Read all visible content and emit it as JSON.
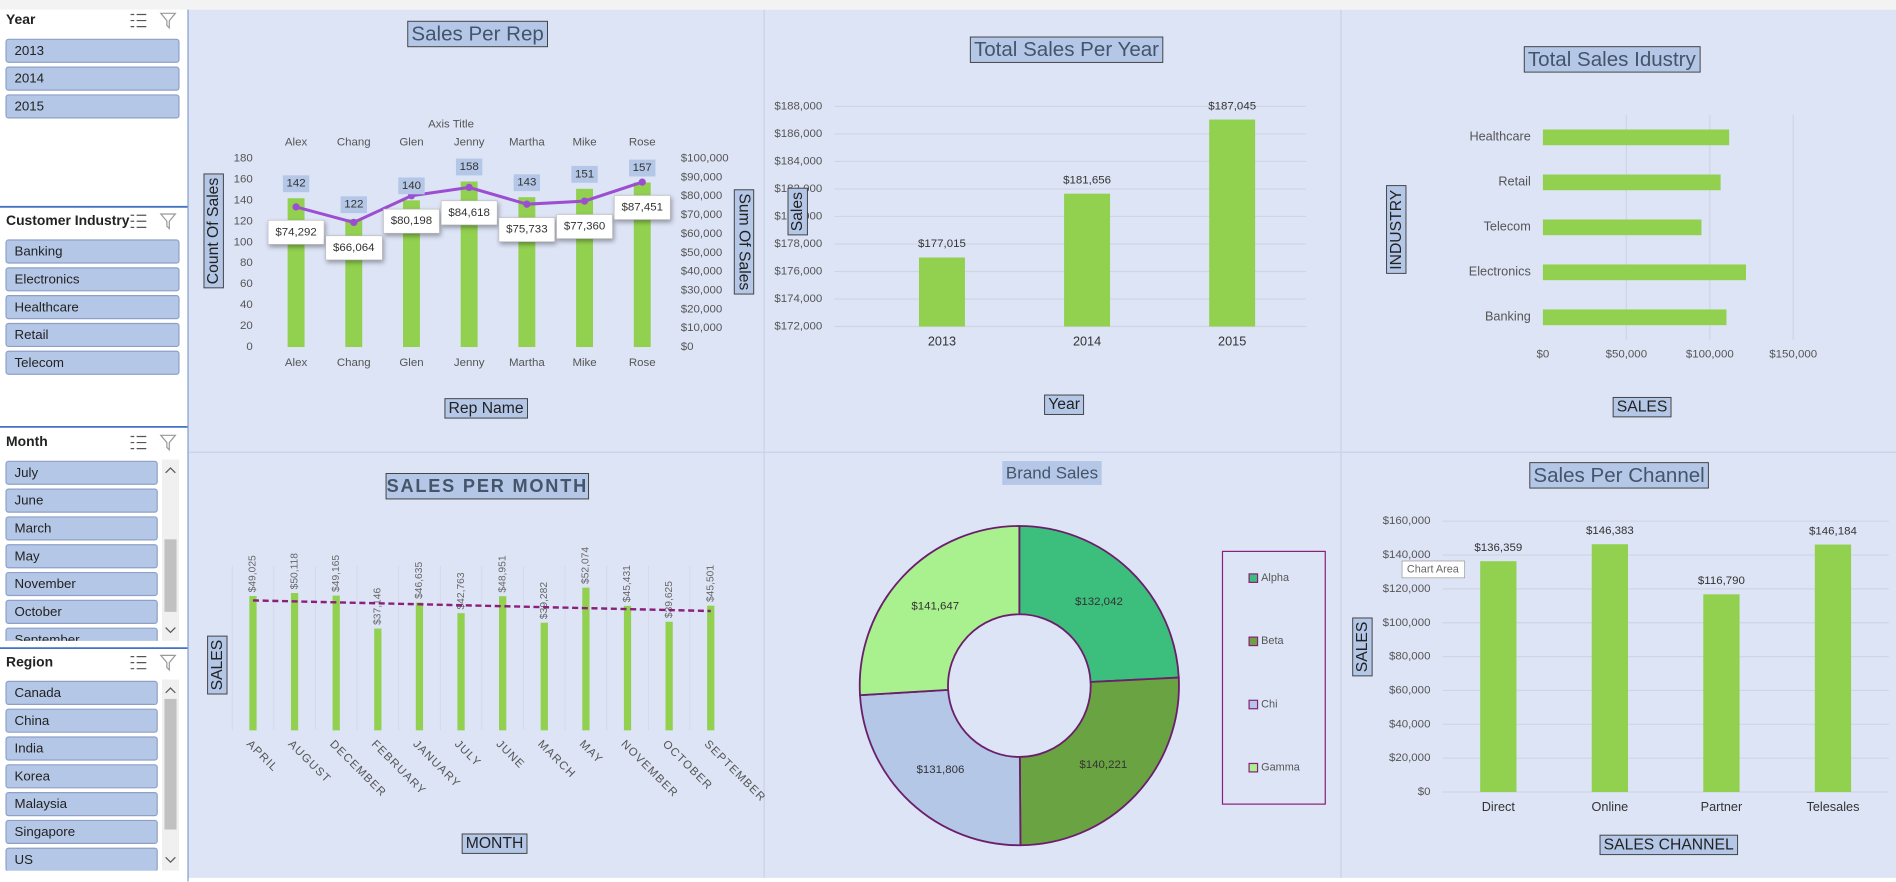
{
  "slicers": [
    {
      "title": "Year",
      "items": [
        "2013",
        "2014",
        "2015"
      ]
    },
    {
      "title": "Customer Industry",
      "items": [
        "Banking",
        "Electronics",
        "Healthcare",
        "Retail",
        "Telecom"
      ]
    },
    {
      "title": "Month",
      "items": [
        "July",
        "June",
        "March",
        "May",
        "November",
        "October",
        "September"
      ]
    },
    {
      "title": "Region",
      "items": [
        "Canada",
        "China",
        "India",
        "Korea",
        "Malaysia",
        "Singapore",
        "US"
      ]
    }
  ],
  "chart_data": [
    {
      "type": "combo",
      "title": "Sales Per Rep",
      "secondary_x_label": "Axis Title",
      "x_label": "Rep Name",
      "y_label": "Count Of Sales",
      "y2_label": "Sum Of Sales",
      "categories": [
        "Alex",
        "Chang",
        "Glen",
        "Jenny",
        "Martha",
        "Mike",
        "Rose"
      ],
      "series": [
        {
          "type": "bar",
          "color": "#92d050",
          "values": [
            142,
            122,
            140,
            158,
            143,
            151,
            157
          ]
        },
        {
          "type": "line",
          "axis": "y2",
          "color": "#9b4fd0",
          "values": [
            74292,
            66064,
            80198,
            84618,
            75733,
            77360,
            87451
          ],
          "value_labels": [
            "$74,292",
            "$66,064",
            "$80,198",
            "$84,618",
            "$75,733",
            "$77,360",
            "$87,451"
          ]
        }
      ],
      "ylim": [
        0,
        180
      ],
      "yticks": [
        0,
        20,
        40,
        60,
        80,
        100,
        120,
        140,
        160,
        180
      ],
      "y2lim": [
        0,
        100000
      ],
      "y2ticks": [
        {
          "value": 0,
          "label": "$0"
        },
        {
          "value": 10000,
          "label": "$10,000"
        },
        {
          "value": 20000,
          "label": "$20,000"
        },
        {
          "value": 30000,
          "label": "$30,000"
        },
        {
          "value": 40000,
          "label": "$40,000"
        },
        {
          "value": 50000,
          "label": "$50,000"
        },
        {
          "value": 60000,
          "label": "$60,000"
        },
        {
          "value": 70000,
          "label": "$70,000"
        },
        {
          "value": 80000,
          "label": "$80,000"
        },
        {
          "value": 90000,
          "label": "$90,000"
        },
        {
          "value": 100000,
          "label": "$100,000"
        }
      ],
      "grid": false
    },
    {
      "type": "bar",
      "title": "Total Sales Per Year",
      "x_label": "Year",
      "y_label": "Sales",
      "categories": [
        "2013",
        "2014",
        "2015"
      ],
      "values": [
        177015,
        181656,
        187045
      ],
      "value_labels": [
        "$177,015",
        "$181,656",
        "$187,045"
      ],
      "color": "#92d050",
      "ylim": [
        172000,
        188000
      ],
      "yticks": [
        {
          "value": 172000,
          "label": "$172,000"
        },
        {
          "value": 174000,
          "label": "$174,000"
        },
        {
          "value": 176000,
          "label": "$176,000"
        },
        {
          "value": 178000,
          "label": "$178,000"
        },
        {
          "value": 180000,
          "label": "$180,000"
        },
        {
          "value": 182000,
          "label": "$182,000"
        },
        {
          "value": 184000,
          "label": "$184,000"
        },
        {
          "value": 186000,
          "label": "$186,000"
        },
        {
          "value": 188000,
          "label": "$188,000"
        }
      ],
      "grid": true
    },
    {
      "type": "bar",
      "orientation": "horizontal",
      "title": "Total Sales Idustry",
      "x_label": "SALES",
      "y_label": "INDUSTRY",
      "categories": [
        "Banking",
        "Electronics",
        "Telecom",
        "Retail",
        "Healthcare"
      ],
      "values": [
        110000,
        121700,
        95000,
        106500,
        111600
      ],
      "color": "#92d050",
      "xlim": [
        0,
        150000
      ],
      "xticks": [
        {
          "value": 0,
          "label": "$0"
        },
        {
          "value": 50000,
          "label": "$50,000"
        },
        {
          "value": 100000,
          "label": "$100,000"
        },
        {
          "value": 150000,
          "label": "$150,000"
        }
      ],
      "grid": true
    },
    {
      "type": "bar",
      "title": "SALES PER MONTH",
      "x_label": "MONTH",
      "y_label": "SALES",
      "categories": [
        "APRIL",
        "AUGUST",
        "DECEMBER",
        "FEBRUARY",
        "JANUARY",
        "JULY",
        "JUNE",
        "MARCH",
        "MAY",
        "NOVEMBER",
        "OCTOBER",
        "SEPTEMBER"
      ],
      "values": [
        49025,
        50118,
        49165,
        37146,
        46635,
        42763,
        48951,
        39282,
        52074,
        45431,
        39625,
        45501
      ],
      "value_labels": [
        "$49,025",
        "$50,118",
        "$49,165",
        "$37,146",
        "$46,635",
        "$42,763",
        "$48,951",
        "$39,282",
        "$52,074",
        "$45,431",
        "$39,625",
        "$45,501"
      ],
      "color": "#92d050",
      "ylim": [
        0,
        60000
      ],
      "trendline": true,
      "trendline_color": "#8b1f7a",
      "grid": false
    },
    {
      "type": "pie",
      "title": "Brand Sales",
      "categories": [
        "Alpha",
        "Beta",
        "Chi",
        "Gamma"
      ],
      "values": [
        132042,
        140221,
        131806,
        141647
      ],
      "value_labels": [
        "$132,042",
        "$140,221",
        "$131,806",
        "$141,647"
      ],
      "colors": [
        "#3cbf7c",
        "#6aa342",
        "#b4c7e7",
        "#a9f08f"
      ],
      "donut": true,
      "legend": "right"
    },
    {
      "type": "bar",
      "title": "Sales Per Channel",
      "x_label": "SALES CHANNEL",
      "y_label": "SALES",
      "tooltip": "Chart Area",
      "categories": [
        "Direct",
        "Online",
        "Partner",
        "Telesales"
      ],
      "values": [
        136359,
        146383,
        116790,
        146184
      ],
      "value_labels": [
        "$136,359",
        "$146,383",
        "$116,790",
        "$146,184"
      ],
      "color": "#92d050",
      "ylim": [
        0,
        160000
      ],
      "yticks": [
        {
          "value": 0,
          "label": "$0"
        },
        {
          "value": 20000,
          "label": "$20,000"
        },
        {
          "value": 40000,
          "label": "$40,000"
        },
        {
          "value": 60000,
          "label": "$60,000"
        },
        {
          "value": 80000,
          "label": "$80,000"
        },
        {
          "value": 100000,
          "label": "$100,000"
        },
        {
          "value": 120000,
          "label": "$120,000"
        },
        {
          "value": 140000,
          "label": "$140,000"
        },
        {
          "value": 160000,
          "label": "$160,000"
        }
      ],
      "grid": true
    }
  ]
}
